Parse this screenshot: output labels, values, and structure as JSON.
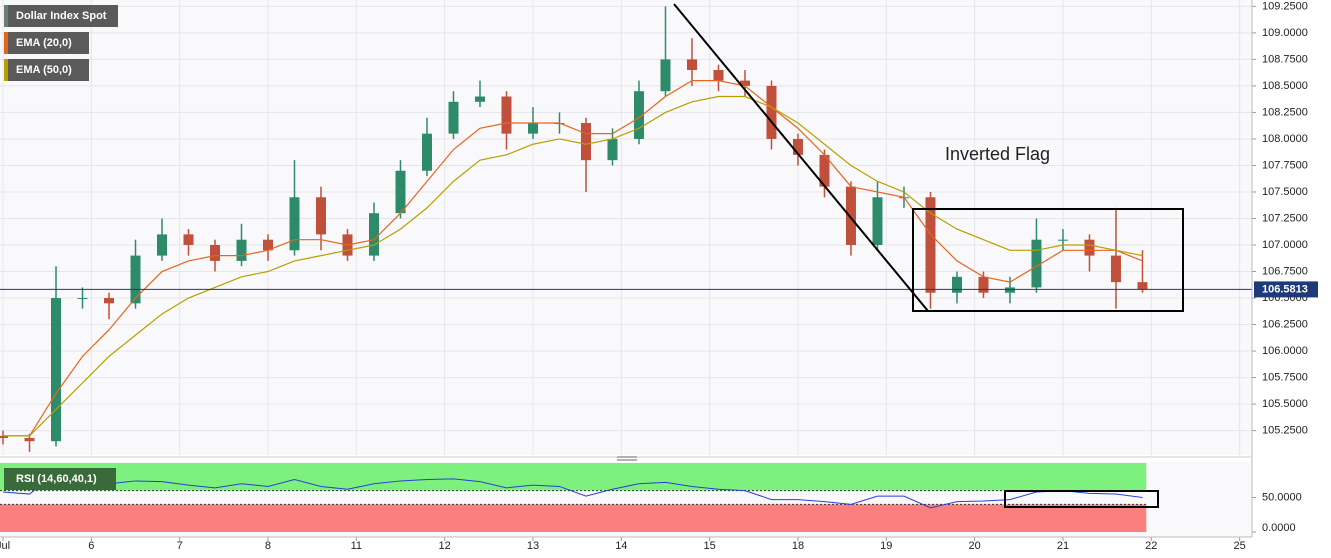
{
  "chart_data": [
    {
      "type": "candlestick",
      "title": "Dollar Index Spot",
      "x": [
        0.0,
        0.3,
        0.6,
        0.9,
        1.2,
        1.5,
        1.8,
        2.1,
        2.4,
        2.7,
        3.0,
        3.3,
        3.6,
        3.9,
        4.2,
        4.5,
        4.8,
        5.1,
        5.4,
        5.7,
        6.0,
        6.3,
        6.6,
        6.9,
        7.2,
        7.5,
        7.8,
        8.1,
        8.4,
        8.7,
        9.0,
        9.3,
        9.6,
        9.9,
        10.2,
        10.5,
        10.8,
        11.1,
        11.4,
        11.7,
        12.0,
        12.3,
        12.6,
        12.9
      ],
      "open": [
        105.2,
        105.18,
        105.15,
        106.5,
        106.5,
        106.45,
        106.9,
        107.1,
        107.0,
        106.85,
        107.05,
        106.95,
        107.45,
        107.1,
        106.9,
        107.3,
        107.7,
        108.05,
        108.35,
        108.4,
        108.05,
        108.15,
        108.15,
        107.8,
        108.0,
        108.45,
        108.75,
        108.65,
        108.55,
        108.5,
        108.0,
        107.85,
        107.55,
        107.0,
        107.45,
        107.45,
        106.55,
        106.7,
        106.55,
        106.6,
        107.05,
        107.05,
        106.9,
        106.65
      ],
      "high": [
        105.25,
        105.22,
        106.8,
        106.6,
        106.55,
        107.05,
        107.25,
        107.15,
        107.05,
        107.2,
        107.1,
        107.8,
        107.55,
        107.15,
        107.4,
        107.8,
        108.2,
        108.45,
        108.55,
        108.45,
        108.3,
        108.25,
        108.2,
        108.1,
        108.55,
        109.25,
        108.95,
        108.7,
        108.65,
        108.55,
        108.05,
        107.9,
        107.6,
        107.6,
        107.55,
        107.5,
        106.75,
        106.75,
        106.7,
        107.25,
        107.15,
        107.1,
        107.35,
        106.95
      ],
      "low": [
        105.12,
        105.05,
        105.1,
        106.4,
        106.3,
        106.4,
        106.85,
        106.9,
        106.75,
        106.8,
        106.85,
        106.9,
        106.95,
        106.85,
        106.85,
        107.25,
        107.65,
        108.0,
        108.3,
        107.9,
        108.0,
        108.05,
        107.5,
        107.75,
        107.95,
        108.4,
        108.5,
        108.45,
        108.4,
        107.9,
        107.75,
        107.45,
        106.9,
        106.95,
        107.35,
        106.4,
        106.45,
        106.5,
        106.45,
        106.55,
        106.95,
        106.75,
        106.4,
        106.55
      ],
      "close": [
        105.18,
        105.15,
        106.5,
        106.5,
        106.45,
        106.9,
        107.1,
        107.0,
        106.85,
        107.05,
        106.95,
        107.45,
        107.1,
        106.9,
        107.3,
        107.7,
        108.05,
        108.35,
        108.4,
        108.05,
        108.15,
        108.15,
        107.8,
        108.0,
        108.45,
        108.75,
        108.65,
        108.55,
        108.5,
        108.0,
        107.85,
        107.55,
        107.0,
        107.45,
        107.45,
        106.55,
        106.7,
        106.55,
        106.6,
        107.05,
        107.05,
        106.9,
        106.65,
        106.58
      ],
      "up_color": "#2e8b6a",
      "down_color": "#c0503c",
      "title_color": "#6f7f6f",
      "series": [
        {
          "name": "EMA (20,0)",
          "color": "#e8641e",
          "values": [
            105.2,
            105.2,
            105.6,
            105.95,
            106.2,
            106.5,
            106.75,
            106.85,
            106.9,
            106.9,
            106.95,
            107.05,
            107.05,
            107.0,
            107.05,
            107.3,
            107.6,
            107.9,
            108.1,
            108.15,
            108.15,
            108.15,
            108.05,
            108.05,
            108.2,
            108.4,
            108.55,
            108.55,
            108.5,
            108.3,
            108.1,
            107.85,
            107.55,
            107.5,
            107.45,
            107.1,
            106.85,
            106.7,
            106.65,
            106.8,
            106.95,
            106.95,
            106.95,
            106.85
          ]
        },
        {
          "name": "EMA (50,0)",
          "color": "#b5a000",
          "values": [
            105.2,
            105.2,
            105.45,
            105.7,
            105.95,
            106.15,
            106.35,
            106.5,
            106.6,
            106.7,
            106.75,
            106.85,
            106.9,
            106.95,
            107.0,
            107.15,
            107.35,
            107.6,
            107.8,
            107.85,
            107.95,
            108.0,
            107.95,
            108.0,
            108.1,
            108.25,
            108.35,
            108.4,
            108.4,
            108.3,
            108.15,
            107.95,
            107.75,
            107.6,
            107.5,
            107.3,
            107.15,
            107.05,
            106.95,
            106.95,
            107.0,
            107.0,
            106.95,
            106.9
          ]
        }
      ],
      "last_price": 106.5813,
      "last_price_color": "#1e3a78",
      "annotation": "Inverted Flag",
      "xlim": [
        -0.034,
        14.14
      ],
      "ylim": [
        105.02,
        109.31
      ],
      "xticks": [
        {
          "value": 0,
          "label": "Jul"
        },
        {
          "value": 1,
          "label": "6"
        },
        {
          "value": 2,
          "label": "7"
        },
        {
          "value": 3,
          "label": "8"
        },
        {
          "value": 4,
          "label": "11"
        },
        {
          "value": 5,
          "label": "12"
        },
        {
          "value": 6,
          "label": "13"
        },
        {
          "value": 7,
          "label": "14"
        },
        {
          "value": 8,
          "label": "15"
        },
        {
          "value": 9,
          "label": "18"
        },
        {
          "value": 10,
          "label": "19"
        },
        {
          "value": 11,
          "label": "20"
        },
        {
          "value": 12,
          "label": "21"
        },
        {
          "value": 13,
          "label": "22"
        },
        {
          "value": 14,
          "label": "25"
        }
      ],
      "yticks": [
        {
          "value": 105.25,
          "label": "105.2500"
        },
        {
          "value": 105.5,
          "label": "105.5000"
        },
        {
          "value": 105.75,
          "label": "105.7500"
        },
        {
          "value": 106,
          "label": "106.0000"
        },
        {
          "value": 106.25,
          "label": "106.2500"
        },
        {
          "value": 106.5,
          "label": "106.5000"
        },
        {
          "value": 106.75,
          "label": "106.7500"
        },
        {
          "value": 107,
          "label": "107.0000"
        },
        {
          "value": 107.25,
          "label": "107.2500"
        },
        {
          "value": 107.5,
          "label": "107.5000"
        },
        {
          "value": 107.75,
          "label": "107.7500"
        },
        {
          "value": 108,
          "label": "108.0000"
        },
        {
          "value": 108.25,
          "label": "108.2500"
        },
        {
          "value": 108.5,
          "label": "108.5000"
        },
        {
          "value": 108.75,
          "label": "108.7500"
        },
        {
          "value": 109,
          "label": "109.0000"
        },
        {
          "value": 109.25,
          "label": "109.2500"
        }
      ],
      "grid": true
    },
    {
      "type": "line",
      "title": "RSI (14,60,40,1)",
      "color": "#2a3fd8",
      "title_color": "#3a6a3a",
      "values": [
        58,
        55,
        85,
        75,
        70,
        74,
        73,
        68,
        64,
        70,
        66,
        76,
        66,
        62,
        70,
        74,
        76,
        77,
        73,
        64,
        68,
        66,
        52,
        62,
        70,
        72,
        66,
        62,
        60,
        47,
        47,
        44,
        40,
        52,
        52,
        35,
        44,
        45,
        47,
        58,
        60,
        56,
        55,
        50
      ],
      "upper": 60,
      "lower": 40,
      "upper_color": "#7ef07e",
      "lower_color": "#fa7f7f",
      "ylim": [
        0,
        100
      ],
      "yticks": [
        {
          "value": 50,
          "label": "50.0000"
        },
        {
          "value": 0,
          "label": "0.0000"
        }
      ]
    }
  ]
}
